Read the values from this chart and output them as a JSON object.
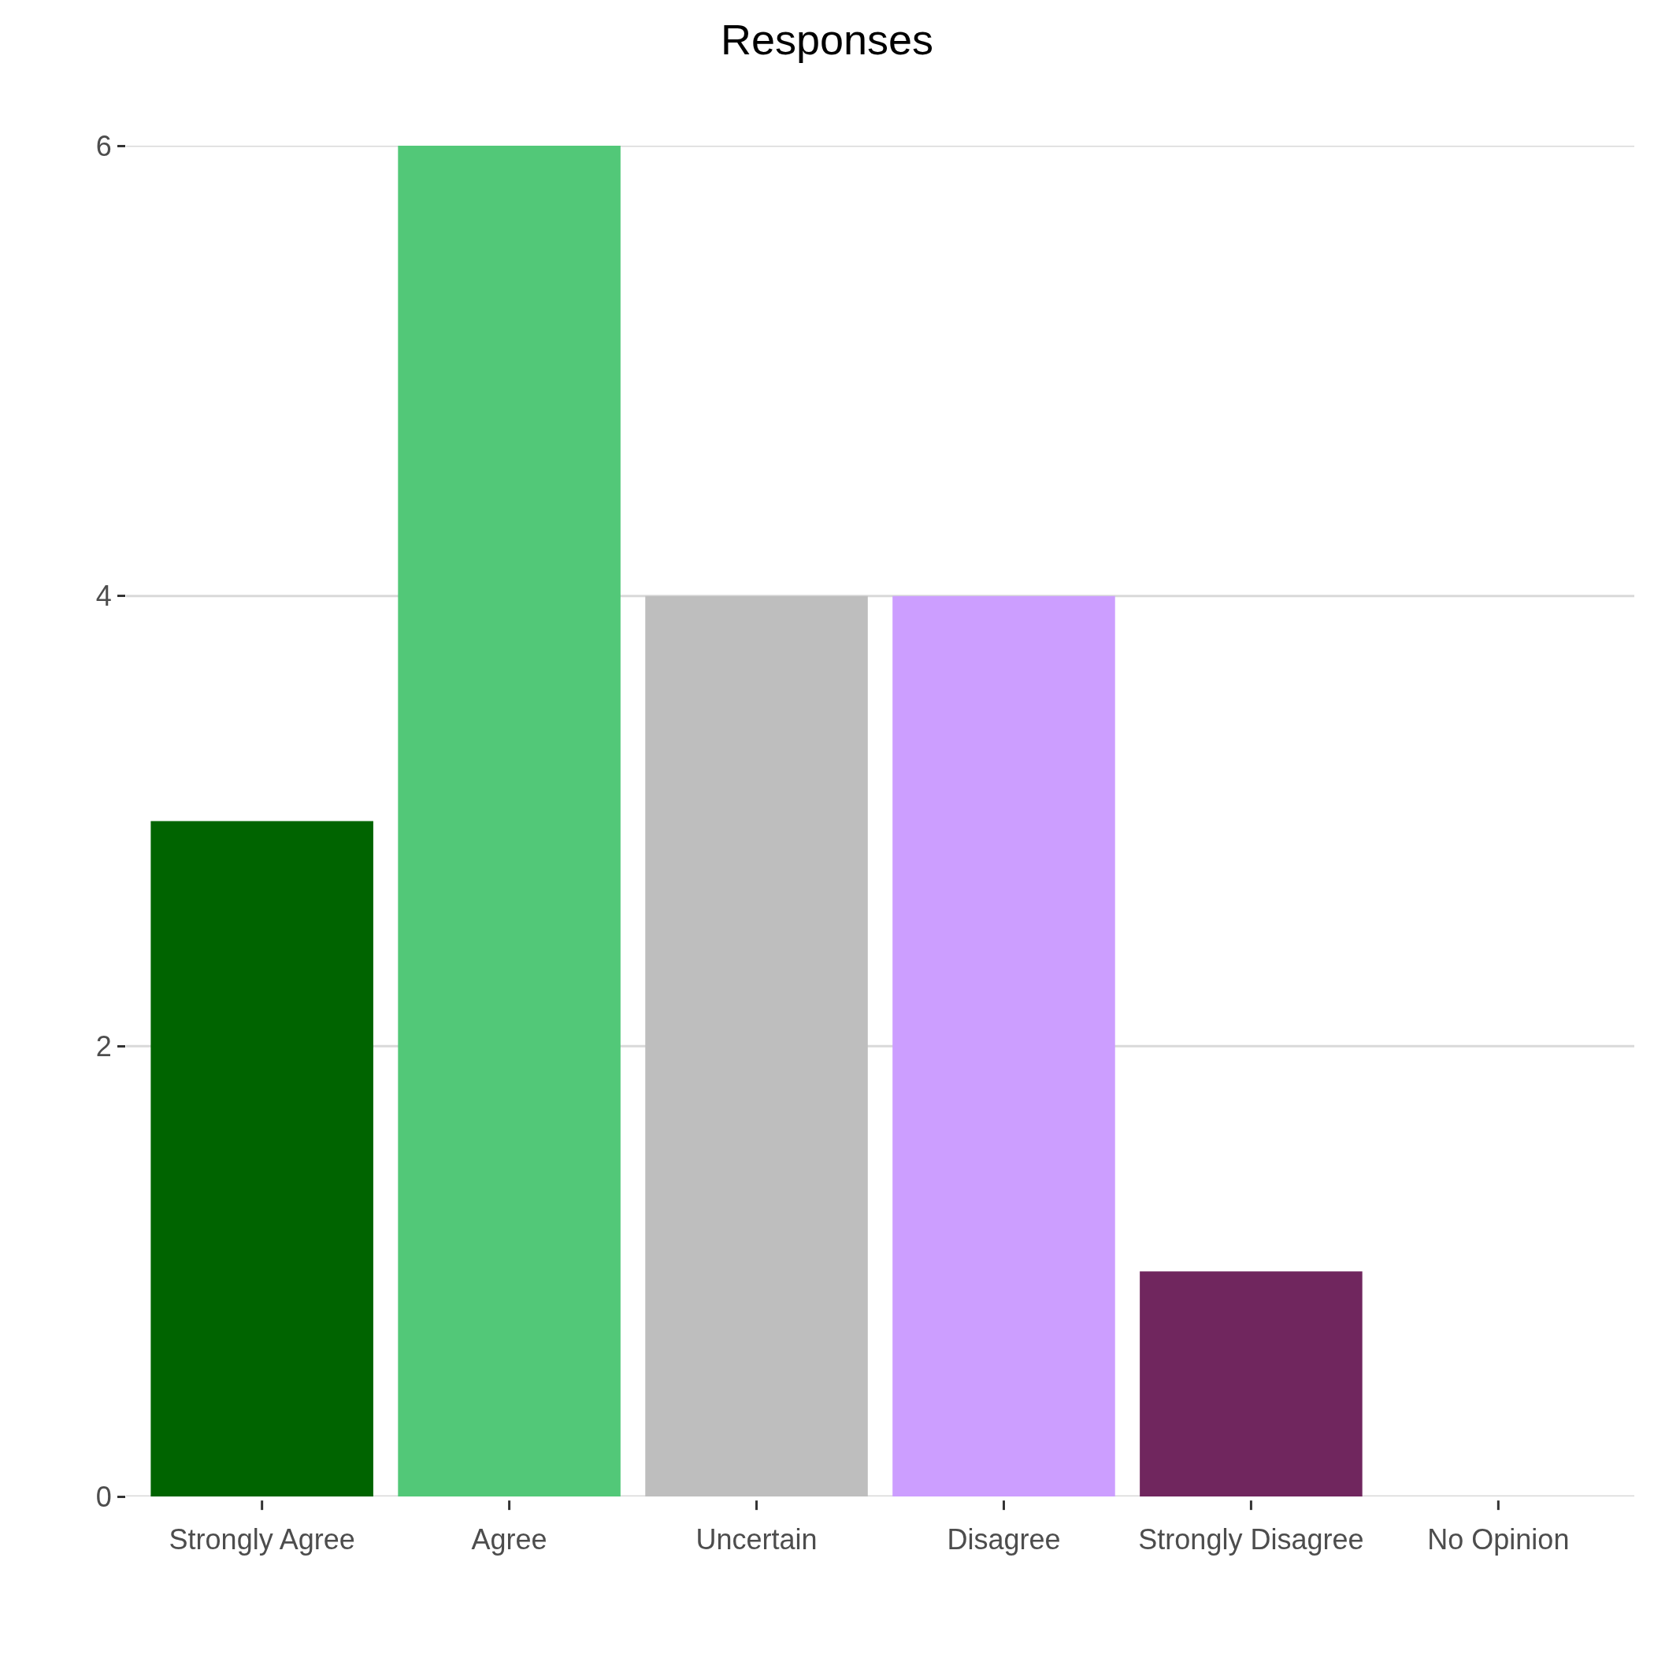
{
  "chart_data": {
    "type": "bar",
    "title": "Responses",
    "categories": [
      "Strongly Agree",
      "Agree",
      "Uncertain",
      "Disagree",
      "Strongly Disagree",
      "No Opinion"
    ],
    "values": [
      3,
      6,
      4,
      4,
      1,
      0
    ],
    "colors": [
      "#006400",
      "#52c878",
      "#bebebe",
      "#cc9eff",
      "#70265e",
      "#e0e0e0"
    ],
    "ylim": [
      0,
      6
    ],
    "yticks": [
      0,
      2,
      4,
      6
    ],
    "grid": "y",
    "legend": false
  }
}
